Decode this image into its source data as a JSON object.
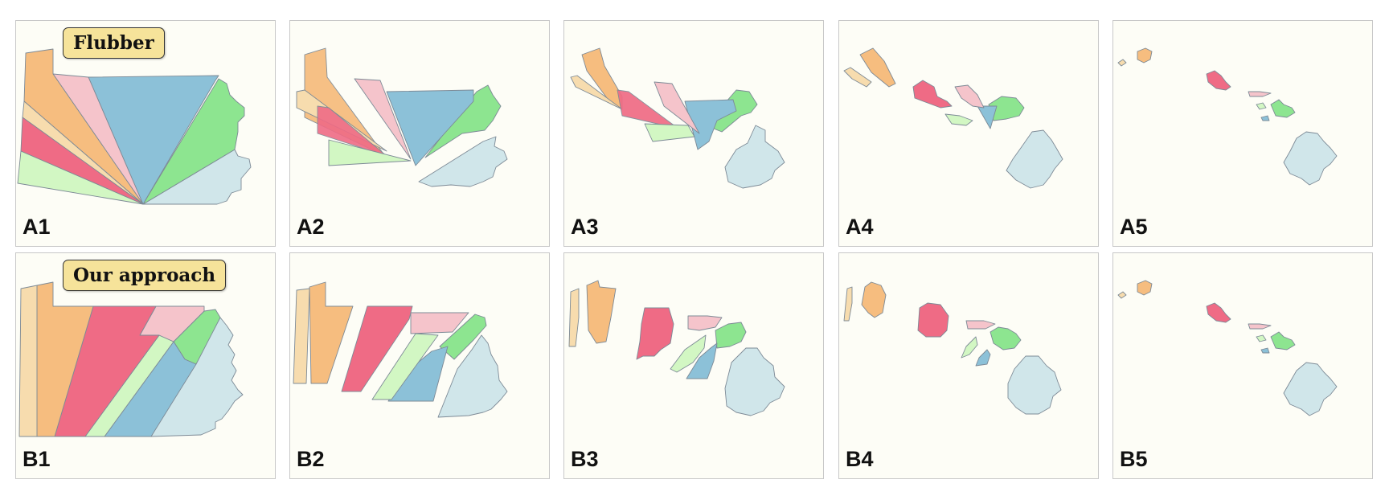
{
  "badges": {
    "row_a": "Flubber",
    "row_b": "Our approach"
  },
  "panels": {
    "a1": "A1",
    "a2": "A2",
    "a3": "A3",
    "a4": "A4",
    "a5": "A5",
    "b1": "B1",
    "b2": "B2",
    "b3": "B3",
    "b4": "B4",
    "b5": "B5"
  },
  "colors": {
    "orange": "#f6bd7f",
    "tan": "#f7dcae",
    "pink": "#f5c4cb",
    "red": "#ef6b85",
    "blue": "#8cc1d8",
    "green": "#8de590",
    "lightgreen": "#d2f7c3",
    "paleblue": "#d0e6ea"
  }
}
